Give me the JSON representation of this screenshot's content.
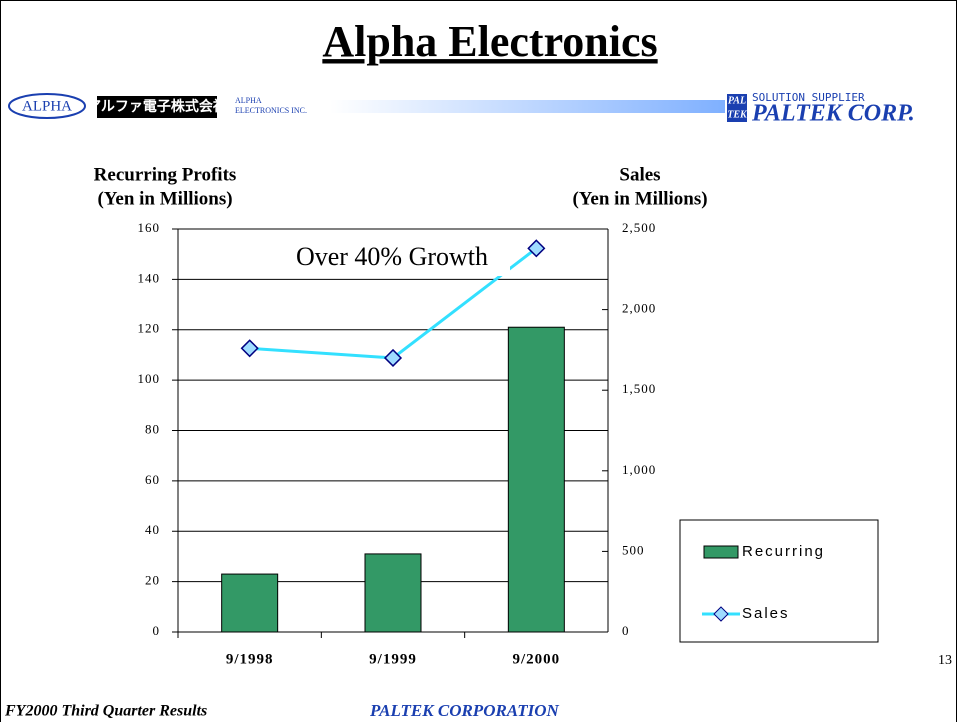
{
  "header": {
    "title": "Alpha Electronics",
    "alpha_oval": "ALPHA",
    "japanese_name": "アルファ電子株式会社",
    "alpha_small": "ALPHA",
    "alpha_small_2": "ELECTRONICS INC.",
    "solution": "SOLUTION SUPPLIER",
    "logo_top": "PAL",
    "logo_bottom": "TEK",
    "paltek": "PALTEK CORP."
  },
  "chart_data": {
    "type": "bar",
    "ylabel": [
      "Recurring Profits",
      "(Yen in Millions)"
    ],
    "y2label": [
      "Sales",
      "(Yen in Millions)"
    ],
    "annotation": "Over 40% Growth",
    "categories": [
      "9/1998",
      "9/1999",
      "9/2000"
    ],
    "series": [
      {
        "name": "Recurring",
        "type": "bar",
        "color": "#339966",
        "values": [
          23,
          31,
          121
        ]
      },
      {
        "name": "Sales",
        "type": "line",
        "axis": "y2",
        "color": "#33e0ff",
        "values": [
          1760,
          1700,
          2380
        ]
      }
    ],
    "ylim": [
      0,
      160
    ],
    "yticks": [
      0,
      20,
      40,
      60,
      80,
      100,
      120,
      140,
      160
    ],
    "y2lim": [
      0,
      2500
    ],
    "y2ticks": [
      0,
      500,
      {
        "value": 1000,
        "label": "1,000"
      },
      {
        "value": 1500,
        "label": "1,500"
      },
      {
        "value": 2000,
        "label": "2,000"
      },
      {
        "value": 2500,
        "label": "2,500"
      }
    ],
    "grid": true,
    "legend": "right"
  },
  "footer": {
    "left": "FY2000 Third Quarter Results",
    "center": "PALTEK CORPORATION",
    "page": 13
  }
}
